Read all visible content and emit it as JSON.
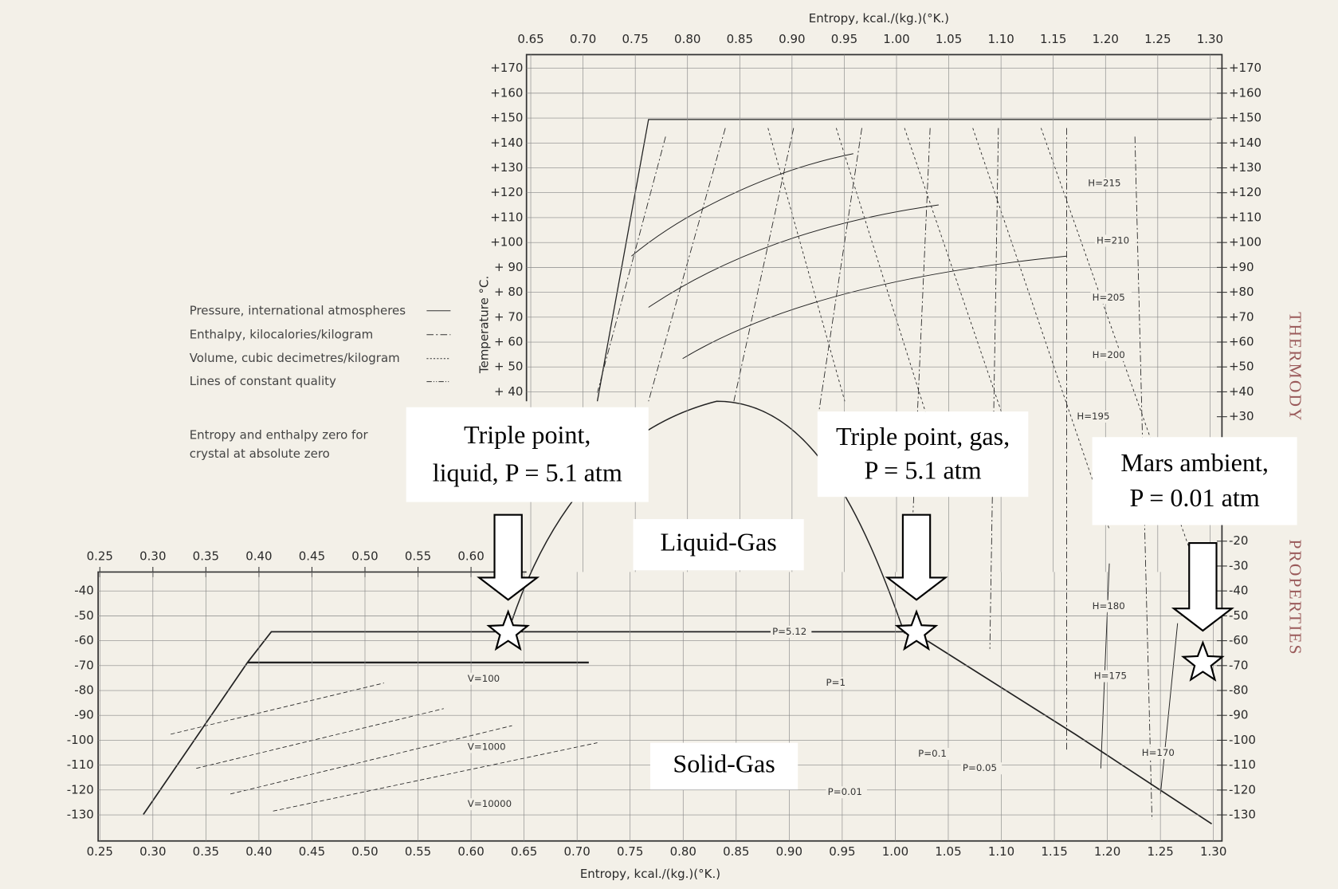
{
  "chart_data": {
    "type": "thermo",
    "top_xlabel": "Entropy,  kcal./(kg.)(°K.)",
    "bottom_xlabel": "Entropy,  kcal./(kg.)(°K.)",
    "ylabel": "Temperature  °C.",
    "upper_xlim": [
      0.65,
      1.3
    ],
    "upper_xticks": [
      0.65,
      {
        "value": 0.7,
        "label": "0.70"
      },
      0.75,
      {
        "value": 0.8,
        "label": "0.80"
      },
      0.85,
      {
        "value": 0.9,
        "label": "0.90"
      },
      0.95,
      {
        "value": 1,
        "label": "1.00"
      },
      1.05,
      {
        "value": 1.1,
        "label": "1.10"
      },
      1.15,
      {
        "value": 1.2,
        "label": "1.20"
      },
      1.25,
      {
        "value": 1.3,
        "label": "1.30"
      }
    ],
    "lower_top_xticks": [
      0.25,
      {
        "value": 0.3,
        "label": "0.30"
      },
      0.35,
      {
        "value": 0.4,
        "label": "0.40"
      },
      0.45,
      {
        "value": 0.5,
        "label": "0.50"
      },
      0.55,
      {
        "value": 0.6,
        "label": "0.60"
      }
    ],
    "lower_xlim": [
      0.25,
      1.3
    ],
    "lower_xticks": [
      0.25,
      {
        "value": 0.3,
        "label": "0.30"
      },
      0.35,
      {
        "value": 0.4,
        "label": "0.40"
      },
      0.45,
      {
        "value": 0.5,
        "label": "0.50"
      },
      0.55,
      {
        "value": 0.6,
        "label": "0.60"
      },
      0.65,
      {
        "value": 0.7,
        "label": "0.70"
      },
      0.75,
      {
        "value": 0.8,
        "label": "0.80"
      },
      0.85,
      {
        "value": 0.9,
        "label": "0.90"
      },
      0.95,
      {
        "value": 1,
        "label": "1.00"
      },
      1.05,
      {
        "value": 1.1,
        "label": "1.10"
      },
      1.15,
      {
        "value": 1.2,
        "label": "1.20"
      },
      1.25,
      {
        "value": 1.3,
        "label": "1.30"
      }
    ],
    "ylim": [
      -130,
      170
    ],
    "upper_yticks": [
      {
        "value": 170,
        "label": "+170"
      },
      {
        "value": 160,
        "label": "+160"
      },
      {
        "value": 150,
        "label": "+150"
      },
      {
        "value": 140,
        "label": "+140"
      },
      {
        "value": 130,
        "label": "+130"
      },
      {
        "value": 120,
        "label": "+120"
      },
      {
        "value": 110,
        "label": "+110"
      },
      {
        "value": 100,
        "label": "+100"
      },
      {
        "value": 90,
        "label": "+ 90"
      },
      {
        "value": 80,
        "label": "+ 80"
      },
      {
        "value": 70,
        "label": "+ 70"
      },
      {
        "value": 60,
        "label": "+ 60"
      },
      {
        "value": 50,
        "label": "+ 50"
      },
      {
        "value": 40,
        "label": "+ 40"
      }
    ],
    "lower_yticks": [
      -40,
      -50,
      -60,
      -70,
      -80,
      -90,
      -100,
      -110,
      -120,
      -130
    ],
    "right_yticks": [
      {
        "value": 170,
        "label": "+170"
      },
      {
        "value": 160,
        "label": "+160"
      },
      {
        "value": 150,
        "label": "+150"
      },
      {
        "value": 140,
        "label": "+140"
      },
      {
        "value": 130,
        "label": "+130"
      },
      {
        "value": 120,
        "label": "+120"
      },
      {
        "value": 110,
        "label": "+110"
      },
      {
        "value": 100,
        "label": "+100"
      },
      {
        "value": 90,
        "label": "+90"
      },
      {
        "value": 80,
        "label": "+80"
      },
      {
        "value": 70,
        "label": "+70"
      },
      {
        "value": 60,
        "label": "+60"
      },
      {
        "value": 50,
        "label": "+50"
      },
      {
        "value": 40,
        "label": "+40"
      },
      {
        "value": 30,
        "label": "+30"
      },
      -20,
      -30,
      -40,
      -50,
      -60,
      -70,
      -80,
      -90,
      -100,
      -110,
      -120,
      -130
    ],
    "legend": [
      "Pressure, international atmospheres",
      "Enthalpy, kilocalories/kilogram",
      "Volume, cubic decimetres/kilogram",
      "Lines of constant quality"
    ],
    "note": [
      "Entropy and enthalpy zero for",
      "crystal at absolute zero"
    ],
    "curve_labels": [
      "H=215",
      "H=210",
      "H=205",
      "H=200",
      "H=195",
      "H=180",
      "H=175",
      "H=170",
      "P=5.12",
      "P=1",
      "P=0.1",
      "P=0.05",
      "P=0.01",
      "V=100",
      "V=1000",
      "V=10000"
    ],
    "regions": [
      "Liquid-Gas",
      "Solid-Gas"
    ],
    "annotations": [
      {
        "lines": [
          "Triple point,",
          "liquid, P = 5.1 atm"
        ],
        "s": 0.635,
        "T": -56.6
      },
      {
        "lines": [
          "Triple point, gas,",
          "P = 5.1 atm"
        ],
        "s": 1.02,
        "T": -56.6
      },
      {
        "lines": [
          "Mars ambient,",
          "P = 0.01 atm"
        ],
        "s": 1.29,
        "T": -69
      }
    ],
    "side_text": [
      "THERMODY",
      "PROPERTIES"
    ]
  }
}
